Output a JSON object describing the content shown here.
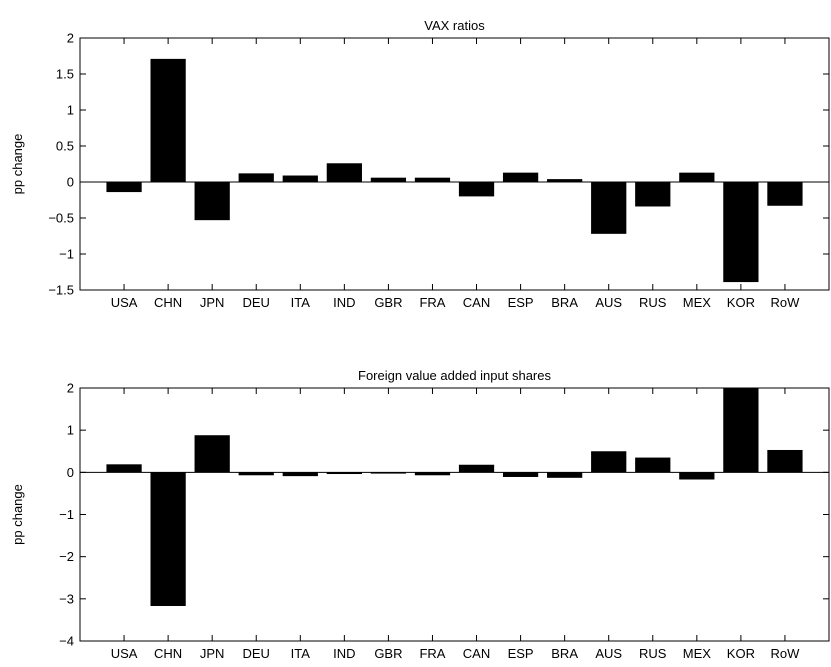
{
  "chart_data": [
    {
      "type": "bar",
      "title": "VAX ratios",
      "xlabel": "",
      "ylabel": "pp change",
      "categories": [
        "USA",
        "CHN",
        "JPN",
        "DEU",
        "ITA",
        "IND",
        "GBR",
        "FRA",
        "CAN",
        "ESP",
        "BRA",
        "AUS",
        "RUS",
        "MEX",
        "KOR",
        "RoW"
      ],
      "values": [
        -0.14,
        1.71,
        -0.53,
        0.12,
        0.09,
        0.26,
        0.06,
        0.06,
        -0.2,
        0.13,
        0.04,
        -0.72,
        -0.34,
        0.13,
        -1.39,
        -0.33
      ],
      "ylim": [
        -1.5,
        2
      ],
      "yticks": [
        -1.5,
        -1,
        -0.5,
        0,
        0.5,
        1,
        1.5,
        2
      ],
      "ytick_labels": [
        "−1.5",
        "−1",
        "−0.5",
        "0",
        "0.5",
        "1",
        "1.5",
        "2"
      ],
      "grid": false,
      "bar_color": "#000000"
    },
    {
      "type": "bar",
      "title": "Foreign value added input shares",
      "xlabel": "",
      "ylabel": "pp change",
      "categories": [
        "USA",
        "CHN",
        "JPN",
        "DEU",
        "ITA",
        "IND",
        "GBR",
        "FRA",
        "CAN",
        "ESP",
        "BRA",
        "AUS",
        "RUS",
        "MEX",
        "KOR",
        "RoW"
      ],
      "values": [
        0.19,
        -3.17,
        0.88,
        -0.07,
        -0.09,
        -0.04,
        -0.03,
        -0.07,
        0.18,
        -0.11,
        -0.13,
        0.5,
        0.35,
        -0.17,
        2.0,
        0.53
      ],
      "ylim": [
        -4,
        2
      ],
      "yticks": [
        -4,
        -3,
        -2,
        -1,
        0,
        1,
        2
      ],
      "ytick_labels": [
        "−4",
        "−3",
        "−2",
        "−1",
        "0",
        "1",
        "2"
      ],
      "grid": false,
      "bar_color": "#000000"
    }
  ]
}
